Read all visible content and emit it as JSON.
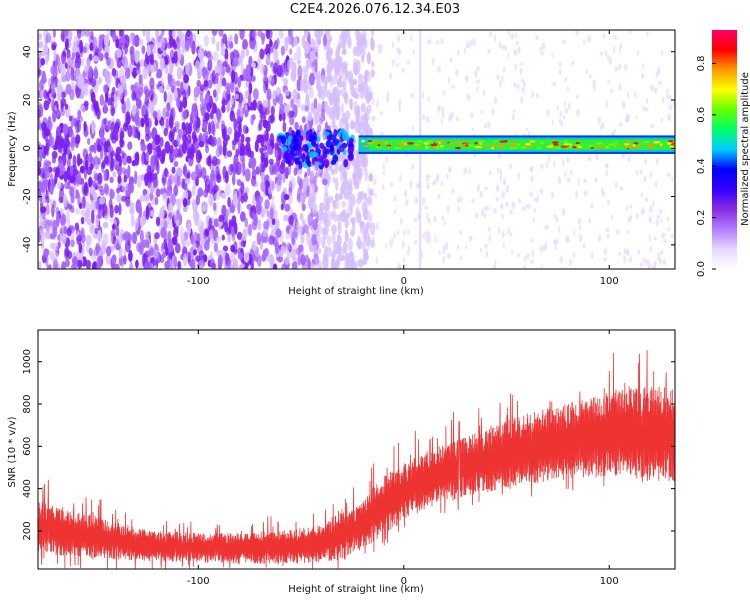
{
  "title": "C2E4.2026.076.12.34.E03",
  "chart_data": [
    {
      "type": "heatmap",
      "name": "spectrogram",
      "xlabel": "Height of straight line (km)",
      "ylabel": "Frequency (Hz)",
      "xlim": [
        -178,
        132
      ],
      "ylim": [
        -50,
        49
      ],
      "xticks": [
        -100,
        0,
        100
      ],
      "xtick_labels": [
        "-100",
        "0",
        "100"
      ],
      "yticks": [
        -40,
        -20,
        0,
        20,
        40
      ],
      "ytick_labels": [
        "-40",
        "-20",
        "0",
        "20",
        "40"
      ],
      "description_values": {
        "noise_region_x": [
          -178,
          -25
        ],
        "signal_line_x": [
          -22,
          132
        ],
        "signal_line_freq": [
          0,
          3
        ],
        "cluster_x": [
          -60,
          -25
        ]
      },
      "colorbar": {
        "label": "Normalized spectral amplitude",
        "range": [
          0.0,
          0.93
        ],
        "ticks": [
          0.0,
          0.2,
          0.4,
          0.6,
          0.8
        ],
        "tick_labels": [
          "0.0",
          "0.2",
          "0.4",
          "0.6",
          "0.8"
        ],
        "colormap": [
          "#ffffff",
          "#e6d6ff",
          "#b07cff",
          "#8a2be2",
          "#3300ff",
          "#0000ff",
          "#00ccff",
          "#00ff66",
          "#66ff00",
          "#ffff00",
          "#ff9900",
          "#ff0000",
          "#ff0066"
        ]
      }
    },
    {
      "type": "line",
      "name": "snr",
      "xlabel": "Height of straight line (km)",
      "ylabel": "SNR (10 * v/v)",
      "xlim": [
        -178,
        132
      ],
      "ylim": [
        20,
        1150
      ],
      "xticks": [
        -100,
        0,
        100
      ],
      "xtick_labels": [
        "-100",
        "0",
        "100"
      ],
      "yticks": [
        200,
        400,
        600,
        800,
        1000
      ],
      "ytick_labels": [
        "200",
        "400",
        "600",
        "800",
        "1000"
      ],
      "color": "#ee3333",
      "envelope": {
        "x": [
          -178,
          -160,
          -140,
          -120,
          -100,
          -80,
          -60,
          -40,
          -30,
          -20,
          -10,
          0,
          10,
          20,
          40,
          60,
          80,
          100,
          115,
          132
        ],
        "lower": [
          90,
          80,
          65,
          55,
          50,
          45,
          45,
          50,
          65,
          110,
          180,
          250,
          300,
          340,
          380,
          420,
          440,
          460,
          440,
          430
        ],
        "upper": [
          340,
          300,
          240,
          200,
          190,
          190,
          200,
          230,
          290,
          340,
          460,
          520,
          560,
          610,
          690,
          760,
          800,
          860,
          900,
          880
        ]
      }
    }
  ]
}
